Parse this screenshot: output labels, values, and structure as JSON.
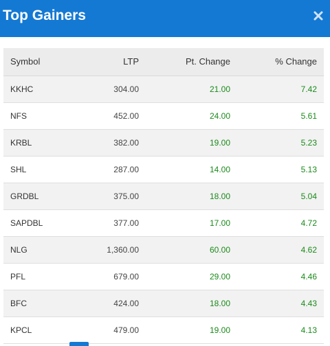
{
  "header": {
    "title": "Top Gainers",
    "close_icon": "close-icon",
    "background": "#1479d3"
  },
  "table": {
    "columns": [
      "Symbol",
      "LTP",
      "Pt. Change",
      "% Change"
    ],
    "rows": [
      {
        "symbol": "KKHC",
        "ltp": "304.00",
        "pt_change": "21.00",
        "pct_change": "7.42"
      },
      {
        "symbol": "NFS",
        "ltp": "452.00",
        "pt_change": "24.00",
        "pct_change": "5.61"
      },
      {
        "symbol": "KRBL",
        "ltp": "382.00",
        "pt_change": "19.00",
        "pct_change": "5.23"
      },
      {
        "symbol": "SHL",
        "ltp": "287.00",
        "pt_change": "14.00",
        "pct_change": "5.13"
      },
      {
        "symbol": "GRDBL",
        "ltp": "375.00",
        "pt_change": "18.00",
        "pct_change": "5.04"
      },
      {
        "symbol": "SAPDBL",
        "ltp": "377.00",
        "pt_change": "17.00",
        "pct_change": "4.72"
      },
      {
        "symbol": "NLG",
        "ltp": "1,360.00",
        "pt_change": "60.00",
        "pct_change": "4.62"
      },
      {
        "symbol": "PFL",
        "ltp": "679.00",
        "pt_change": "29.00",
        "pct_change": "4.46"
      },
      {
        "symbol": "BFC",
        "ltp": "424.00",
        "pt_change": "18.00",
        "pct_change": "4.43"
      },
      {
        "symbol": "KPCL",
        "ltp": "479.00",
        "pt_change": "19.00",
        "pct_change": "4.13"
      }
    ],
    "positive_color": "#1a8a1a"
  }
}
